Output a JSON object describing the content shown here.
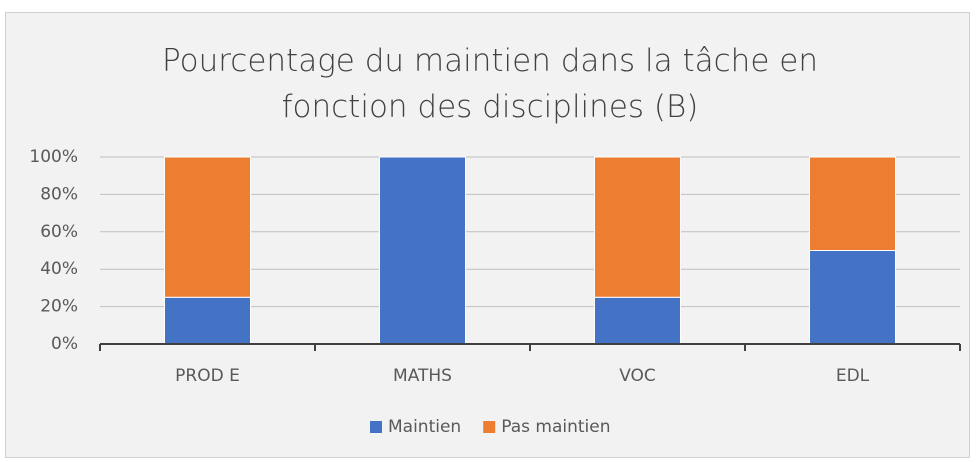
{
  "chart_data": {
    "type": "stacked_bar",
    "title": "Pourcentage du maintien dans la tâche en fonction des disciplines (B)",
    "categories": [
      "PROD E",
      "MATHS",
      "VOC",
      "EDL"
    ],
    "series": [
      {
        "name": "Maintien",
        "color": "#4472c4",
        "values": [
          25,
          100,
          25,
          50
        ]
      },
      {
        "name": "Pas maintien",
        "color": "#ed7d31",
        "values": [
          75,
          0,
          75,
          50
        ]
      }
    ],
    "ylim": [
      0,
      100
    ],
    "yticks": [
      {
        "value": 0,
        "label": "0%"
      },
      {
        "value": 20,
        "label": "20%"
      },
      {
        "value": 40,
        "label": "40%"
      },
      {
        "value": 60,
        "label": "60%"
      },
      {
        "value": 80,
        "label": "80%"
      },
      {
        "value": 100,
        "label": "100%"
      }
    ],
    "grid": true,
    "legend": "bottom"
  }
}
